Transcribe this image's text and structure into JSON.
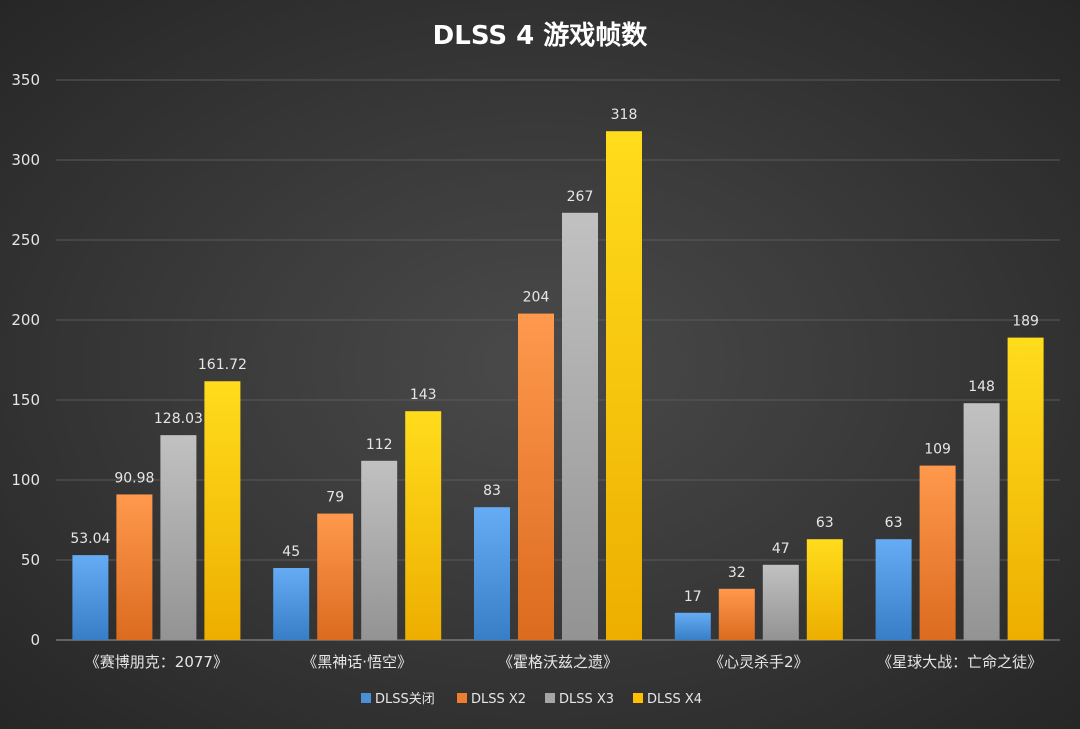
{
  "chart_data": {
    "type": "bar",
    "title": "DLSS 4 游戏帧数",
    "xlabel": "",
    "ylabel": "",
    "ylim": [
      0,
      350
    ],
    "yticks": [
      0,
      50,
      100,
      150,
      200,
      250,
      300,
      350
    ],
    "grid": true,
    "legend_position": "bottom",
    "categories": [
      "《赛博朋克：2077》",
      "《黑神话·悟空》",
      "《霍格沃兹之遗》",
      "《心灵杀手2》",
      "《星球大战：亡命之徒》"
    ],
    "series": [
      {
        "name": "DLSS关闭",
        "color": "#4a90d9",
        "values": [
          53.04,
          45,
          83,
          17,
          63
        ],
        "labels": [
          "53.04",
          "45",
          "83",
          "17",
          "63"
        ]
      },
      {
        "name": "DLSS X2",
        "color": "#ed7d31",
        "values": [
          90.98,
          79,
          204,
          32,
          109
        ],
        "labels": [
          "90.98",
          "79",
          "204",
          "32",
          "109"
        ]
      },
      {
        "name": "DLSS X3",
        "color": "#a5a5a5",
        "values": [
          128.03,
          112,
          267,
          47,
          148
        ],
        "labels": [
          "128.03",
          "112",
          "267",
          "47",
          "148"
        ]
      },
      {
        "name": "DLSS X4",
        "color": "#ffc000",
        "values": [
          161.72,
          143,
          318,
          63,
          189
        ],
        "labels": [
          "161.72",
          "143",
          "318",
          "63",
          "189"
        ]
      }
    ]
  }
}
